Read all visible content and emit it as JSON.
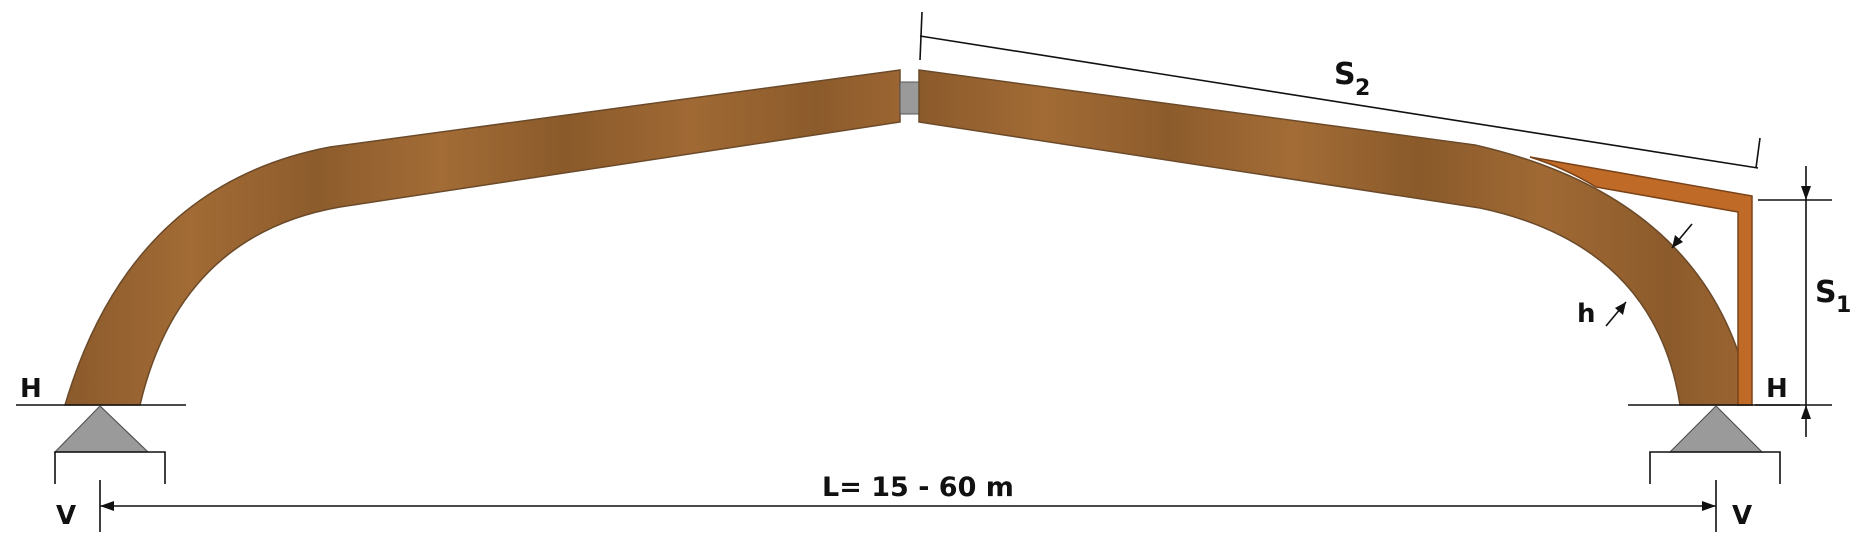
{
  "labels": {
    "h_left": "H",
    "h_right": "H",
    "v_left": "V",
    "v_right": "V",
    "s2_main": "S",
    "s2_sub": "2",
    "s1_main": "S",
    "s1_sub": "1",
    "thickness": "h",
    "span": "L= 15 - 60 m"
  },
  "colors": {
    "wood": "#8b5a2b",
    "wood_light": "#a06a36",
    "brace": "#c06a28",
    "support": "#9a9a9a",
    "line": "#111111"
  }
}
